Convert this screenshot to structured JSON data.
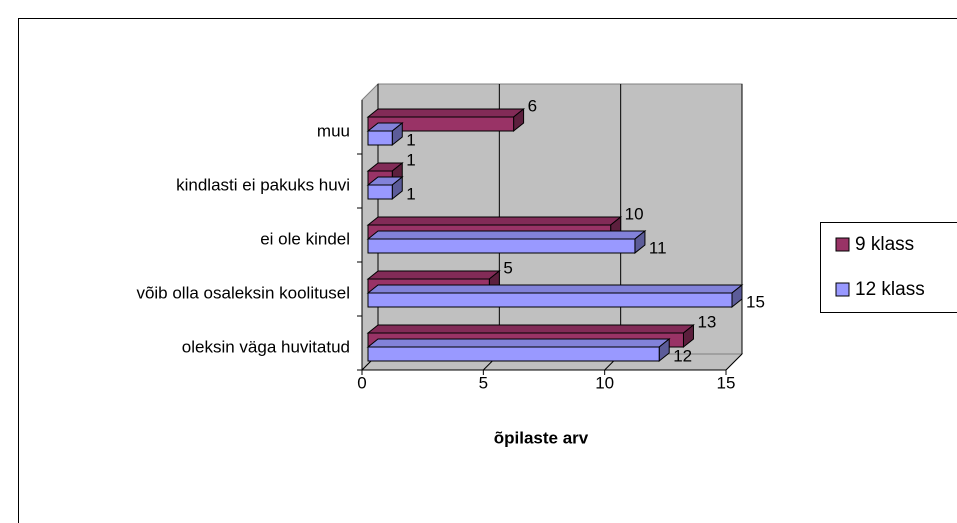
{
  "chart_data": {
    "type": "bar3d_horizontal",
    "categories": [
      "oleksin väga huvitatud",
      "võib olla osaleksin koolitusel",
      "ei ole kindel",
      "kindlasti ei pakuks huvi",
      "muu"
    ],
    "series": [
      {
        "name": "9 klass",
        "color": "#993366",
        "values": [
          13,
          5,
          10,
          1,
          6
        ]
      },
      {
        "name": "12 klass",
        "color": "#9999ff",
        "values": [
          12,
          15,
          11,
          1,
          1
        ]
      }
    ],
    "xlabel": "õpilaste arv",
    "xlim": [
      0,
      15
    ],
    "xticks": [
      0,
      5,
      10,
      15
    ],
    "grid": true,
    "legend": "right"
  }
}
